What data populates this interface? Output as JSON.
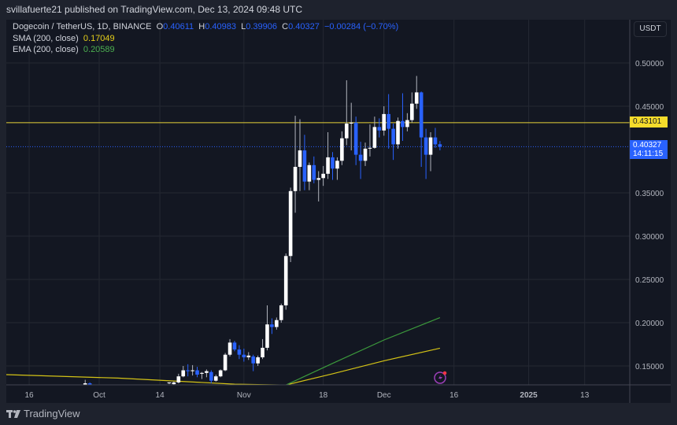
{
  "publisher_line": "svillafuerte21 published on TradingView.com, Dec 13, 2024 09:48 UTC",
  "legend": {
    "symbol": "Dogecoin / TetherUS, 1D, BINANCE",
    "o_label": "O",
    "o": "0.40611",
    "h_label": "H",
    "h": "0.40983",
    "l_label": "L",
    "l": "0.39906",
    "c_label": "C",
    "c": "0.40327",
    "change": "−0.00284 (−0.70%)",
    "sma_label": "SMA (200, close)",
    "sma_value": "0.17049",
    "ema_label": "EMA (200, close)",
    "ema_value": "0.20589"
  },
  "price_axis": {
    "currency": "USDT",
    "line_label": "0.43101",
    "last_price": "0.40327",
    "countdown": "14:11:15"
  },
  "footer": {
    "brand": "TradingView"
  },
  "colors": {
    "up": "#ffffff",
    "down": "#2962ff",
    "sma": "#d4c316",
    "ema": "#3c9a3c",
    "hline": "#e6d23a",
    "background": "#131722"
  },
  "icons": {
    "alert": "lightning-alert-icon",
    "logo": "tradingview-logo-icon"
  },
  "chart_data": {
    "type": "candlestick",
    "title": "Dogecoin / TetherUS, 1D, BINANCE",
    "ylim": [
      0.128,
      0.55
    ],
    "xlim": [
      "2024-09-11",
      "2025-01-22"
    ],
    "grid": true,
    "y_ticks": [
      0.5,
      0.45,
      0.35,
      0.3,
      0.25,
      0.2,
      0.15
    ],
    "y_tick_labels": [
      "0.50000",
      "0.45000",
      "0.35000",
      "0.30000",
      "0.25000",
      "0.20000",
      "0.15000"
    ],
    "x_ticks": [
      {
        "date": "2024-09-16",
        "label": "16"
      },
      {
        "date": "2024-10-01",
        "label": "Oct"
      },
      {
        "date": "2024-10-14",
        "label": "14"
      },
      {
        "date": "2024-11-01",
        "label": "Nov"
      },
      {
        "date": "2024-11-18",
        "label": "18"
      },
      {
        "date": "2024-12-01",
        "label": "Dec"
      },
      {
        "date": "2024-12-16",
        "label": "16"
      },
      {
        "date": "2025-01-01",
        "label": "2025"
      },
      {
        "date": "2025-01-13",
        "label": "13"
      }
    ],
    "horizontal_line": 0.43101,
    "last_price": 0.40327,
    "candles": [
      [
        "2024-09-28",
        0.128,
        0.134,
        0.127,
        0.13
      ],
      [
        "2024-09-29",
        0.13,
        0.131,
        0.127,
        0.128
      ],
      [
        "2024-10-16",
        0.13,
        0.131,
        0.129,
        0.131
      ],
      [
        "2024-10-17",
        0.129,
        0.132,
        0.128,
        0.131
      ],
      [
        "2024-10-18",
        0.131,
        0.141,
        0.13,
        0.138
      ],
      [
        "2024-10-19",
        0.138,
        0.15,
        0.137,
        0.145
      ],
      [
        "2024-10-20",
        0.145,
        0.152,
        0.138,
        0.144
      ],
      [
        "2024-10-21",
        0.144,
        0.151,
        0.139,
        0.145
      ],
      [
        "2024-10-22",
        0.145,
        0.149,
        0.137,
        0.14
      ],
      [
        "2024-10-23",
        0.141,
        0.143,
        0.135,
        0.142
      ],
      [
        "2024-10-24",
        0.142,
        0.146,
        0.137,
        0.144
      ],
      [
        "2024-10-25",
        0.143,
        0.145,
        0.13,
        0.133
      ],
      [
        "2024-10-26",
        0.133,
        0.14,
        0.132,
        0.138
      ],
      [
        "2024-10-27",
        0.138,
        0.146,
        0.137,
        0.145
      ],
      [
        "2024-10-28",
        0.145,
        0.165,
        0.144,
        0.163
      ],
      [
        "2024-10-29",
        0.163,
        0.181,
        0.161,
        0.177
      ],
      [
        "2024-10-30",
        0.177,
        0.179,
        0.167,
        0.169
      ],
      [
        "2024-10-31",
        0.169,
        0.174,
        0.158,
        0.163
      ],
      [
        "2024-11-01",
        0.163,
        0.17,
        0.155,
        0.16
      ],
      [
        "2024-11-02",
        0.16,
        0.166,
        0.157,
        0.162
      ],
      [
        "2024-11-03",
        0.161,
        0.163,
        0.144,
        0.153
      ],
      [
        "2024-11-04",
        0.153,
        0.162,
        0.15,
        0.16
      ],
      [
        "2024-11-05",
        0.16,
        0.181,
        0.158,
        0.171
      ],
      [
        "2024-11-06",
        0.171,
        0.22,
        0.168,
        0.198
      ],
      [
        "2024-11-07",
        0.198,
        0.205,
        0.187,
        0.195
      ],
      [
        "2024-11-08",
        0.195,
        0.206,
        0.192,
        0.203
      ],
      [
        "2024-11-09",
        0.203,
        0.222,
        0.2,
        0.22
      ],
      [
        "2024-11-10",
        0.22,
        0.28,
        0.215,
        0.277
      ],
      [
        "2024-11-11",
        0.277,
        0.356,
        0.27,
        0.352
      ],
      [
        "2024-11-12",
        0.352,
        0.439,
        0.327,
        0.38
      ],
      [
        "2024-11-13",
        0.38,
        0.435,
        0.352,
        0.399
      ],
      [
        "2024-11-14",
        0.399,
        0.417,
        0.353,
        0.363
      ],
      [
        "2024-11-15",
        0.363,
        0.385,
        0.353,
        0.382
      ],
      [
        "2024-11-16",
        0.382,
        0.392,
        0.361,
        0.365
      ],
      [
        "2024-11-17",
        0.365,
        0.375,
        0.34,
        0.367
      ],
      [
        "2024-11-18",
        0.367,
        0.381,
        0.358,
        0.372
      ],
      [
        "2024-11-19",
        0.372,
        0.42,
        0.366,
        0.391
      ],
      [
        "2024-11-20",
        0.391,
        0.397,
        0.365,
        0.378
      ],
      [
        "2024-11-21",
        0.378,
        0.391,
        0.365,
        0.387
      ],
      [
        "2024-11-22",
        0.387,
        0.421,
        0.382,
        0.413
      ],
      [
        "2024-11-23",
        0.413,
        0.48,
        0.405,
        0.43
      ],
      [
        "2024-11-24",
        0.43,
        0.454,
        0.399,
        0.431
      ],
      [
        "2024-11-25",
        0.431,
        0.438,
        0.382,
        0.394
      ],
      [
        "2024-11-26",
        0.394,
        0.409,
        0.366,
        0.387
      ],
      [
        "2024-11-27",
        0.387,
        0.408,
        0.381,
        0.401
      ],
      [
        "2024-11-28",
        0.401,
        0.429,
        0.392,
        0.402
      ],
      [
        "2024-11-29",
        0.402,
        0.438,
        0.401,
        0.426
      ],
      [
        "2024-11-30",
        0.426,
        0.436,
        0.414,
        0.422
      ],
      [
        "2024-12-01",
        0.422,
        0.45,
        0.416,
        0.441
      ],
      [
        "2024-12-02",
        0.441,
        0.464,
        0.401,
        0.424
      ],
      [
        "2024-12-03",
        0.424,
        0.43,
        0.388,
        0.406
      ],
      [
        "2024-12-04",
        0.406,
        0.437,
        0.401,
        0.433
      ],
      [
        "2024-12-05",
        0.433,
        0.465,
        0.41,
        0.426
      ],
      [
        "2024-12-06",
        0.426,
        0.442,
        0.421,
        0.434
      ],
      [
        "2024-12-07",
        0.434,
        0.466,
        0.431,
        0.453
      ],
      [
        "2024-12-08",
        0.453,
        0.485,
        0.447,
        0.466
      ],
      [
        "2024-12-09",
        0.466,
        0.467,
        0.38,
        0.414
      ],
      [
        "2024-12-10",
        0.414,
        0.424,
        0.366,
        0.394
      ],
      [
        "2024-12-11",
        0.394,
        0.42,
        0.375,
        0.414
      ],
      [
        "2024-12-12",
        0.414,
        0.425,
        0.402,
        0.406
      ],
      [
        "2024-12-13",
        0.40611,
        0.40983,
        0.39906,
        0.40327
      ]
    ],
    "series": [
      {
        "name": "SMA (200, close)",
        "points": [
          [
            "2024-09-11",
            0.14
          ],
          [
            "2024-10-05",
            0.136
          ],
          [
            "2024-10-30",
            0.129
          ],
          [
            "2024-11-10",
            0.128
          ],
          [
            "2024-11-20",
            0.141
          ],
          [
            "2024-12-01",
            0.156
          ],
          [
            "2024-12-13",
            0.17049
          ]
        ]
      },
      {
        "name": "EMA (200, close)",
        "points": [
          [
            "2024-11-06",
            0.124
          ],
          [
            "2024-11-10",
            0.128
          ],
          [
            "2024-11-20",
            0.153
          ],
          [
            "2024-12-01",
            0.18
          ],
          [
            "2024-12-13",
            0.20589
          ]
        ]
      }
    ]
  }
}
